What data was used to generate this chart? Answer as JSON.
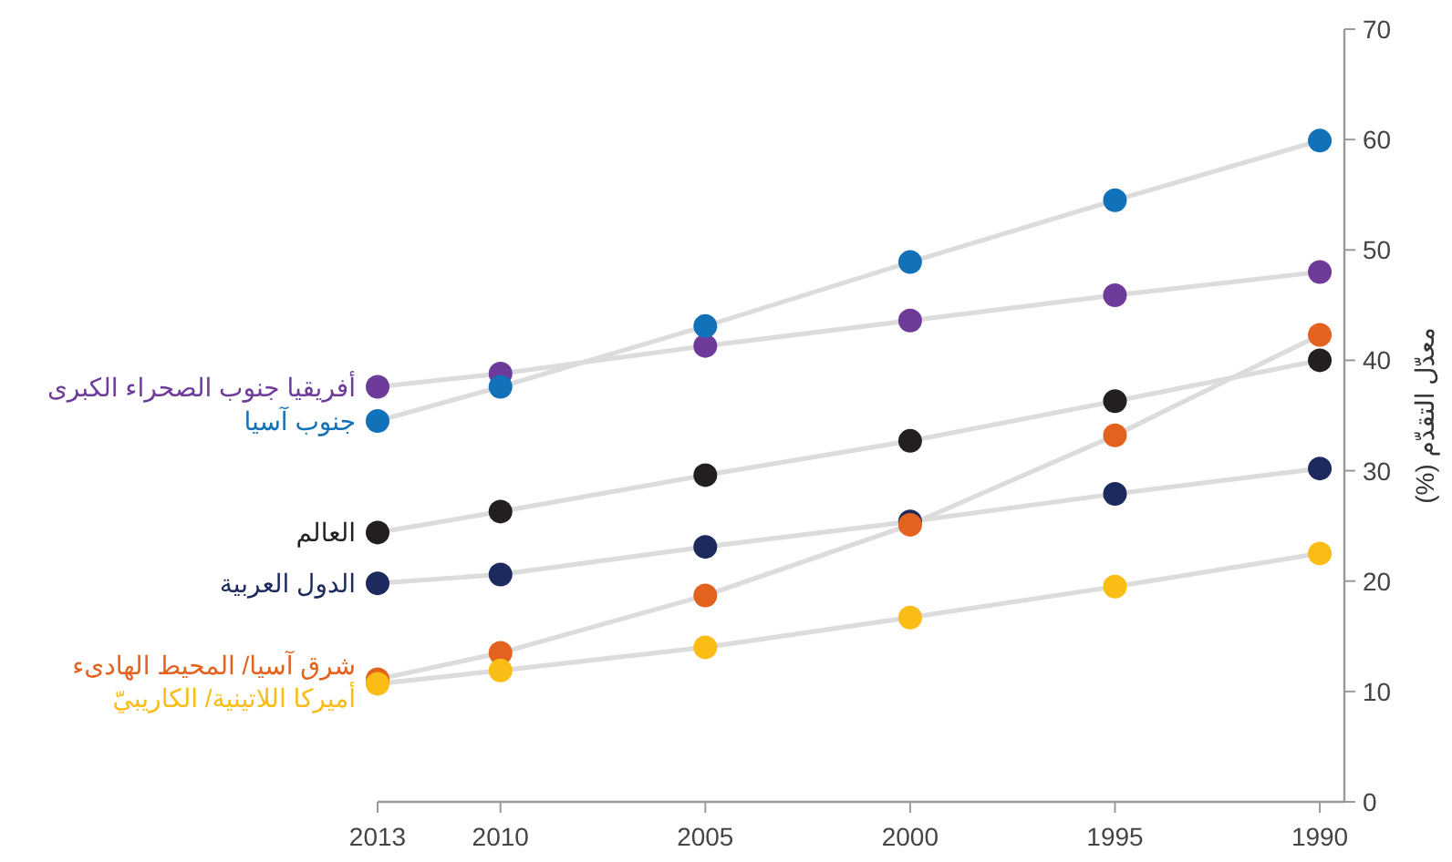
{
  "chart_data": {
    "type": "line",
    "ylabel": "معدّل التقدّم (%)",
    "x": [
      2013,
      2010,
      2005,
      2000,
      1995,
      1990
    ],
    "xlim": [
      2013,
      1989.4
    ],
    "xticks": [
      2013,
      2010,
      2005,
      2000,
      1995,
      1990
    ],
    "ylim": [
      0,
      70
    ],
    "yticks": [
      0,
      10,
      20,
      30,
      40,
      50,
      60,
      70
    ],
    "grid": false,
    "marker": "circle",
    "line_style": "solid",
    "series": [
      {
        "name": "أفريقيا جنوب الصحراء الكبرى",
        "color": "#6e3b9b",
        "values": [
          37.6,
          38.8,
          41.3,
          43.6,
          45.9,
          48.0
        ]
      },
      {
        "name": "جنوب آسيا",
        "color": "#1172ba",
        "values": [
          34.5,
          37.6,
          43.1,
          48.9,
          54.5,
          59.9
        ]
      },
      {
        "name": "العالم",
        "color": "#231f20",
        "values": [
          24.4,
          26.3,
          29.6,
          32.7,
          36.3,
          40.0
        ]
      },
      {
        "name": "الدول العربية",
        "color": "#1d2a5e",
        "values": [
          19.8,
          20.6,
          23.1,
          25.4,
          27.9,
          30.2
        ]
      },
      {
        "name": "شرق آسيا/ المحيط الهادىء",
        "color": "#e2621e",
        "values": [
          11.1,
          13.5,
          18.7,
          25.1,
          33.2,
          42.3
        ]
      },
      {
        "name": "أميركا اللاتينية/ الكاريبيّ",
        "color": "#f9bd16",
        "values": [
          10.7,
          11.9,
          14.0,
          16.7,
          19.5,
          22.5
        ]
      }
    ]
  }
}
